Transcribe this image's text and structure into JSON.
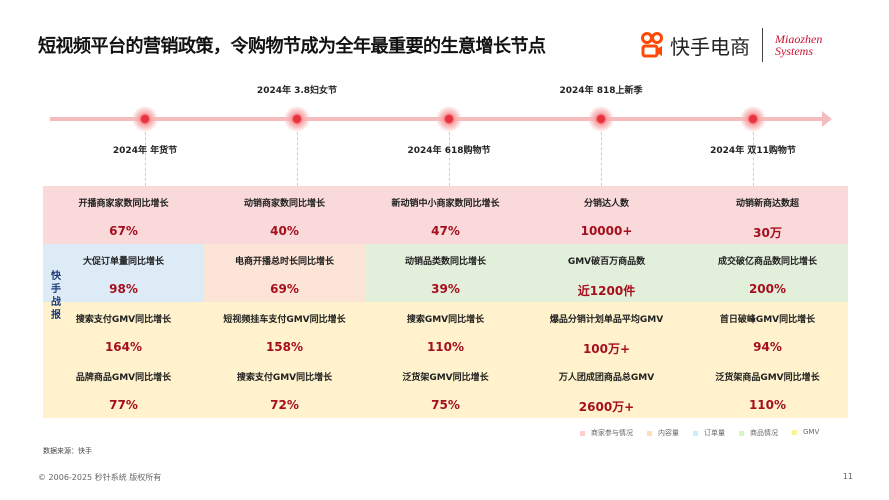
{
  "title": "短视频平台的营销政策，令购物节成为全年最重要的生意增长节点",
  "logo": {
    "kuaishou": "快手电商",
    "miaozhen_line1": "Miaozhen",
    "miaozhen_line2": "Systems"
  },
  "timeline": [
    {
      "label": "2024年 年货节",
      "position": "below"
    },
    {
      "label": "2024年 3.8妇女节",
      "position": "above"
    },
    {
      "label": "2024年 618购物节",
      "position": "below"
    },
    {
      "label": "2024年 818上新季",
      "position": "above"
    },
    {
      "label": "2024年 双11购物节",
      "position": "below"
    }
  ],
  "side_label": "快手战报",
  "colors": {
    "merchant": "#f9d9d9",
    "content": "#fce4d6",
    "order": "#ddebf7",
    "product": "#e2efda",
    "gmv": "#fff2cc",
    "value": "#a50f1e"
  },
  "rows": [
    [
      {
        "label": "开播商家家数同比增长",
        "value": "67%",
        "cat": "merchant"
      },
      {
        "label": "动销商家数同比增长",
        "value": "40%",
        "cat": "merchant"
      },
      {
        "label": "新动销中小商家数同比增长",
        "value": "47%",
        "cat": "merchant"
      },
      {
        "label": "分销达人数",
        "value": "10000+",
        "cat": "merchant"
      },
      {
        "label": "动销新商达数超",
        "value": "30万",
        "cat": "merchant"
      }
    ],
    [
      {
        "label": "大促订单量同比增长",
        "value": "98%",
        "cat": "order"
      },
      {
        "label": "电商开播总时长同比增长",
        "value": "69%",
        "cat": "content"
      },
      {
        "label": "动销品类数同比增长",
        "value": "39%",
        "cat": "product"
      },
      {
        "label": "GMV破百万商品数",
        "value": "近1200件",
        "cat": "product"
      },
      {
        "label": "成交破亿商品数同比增长",
        "value": "200%",
        "cat": "product"
      }
    ],
    [
      {
        "label": "搜索支付GMV同比增长",
        "value": "164%",
        "cat": "gmv"
      },
      {
        "label": "短视频挂车支付GMV同比增长",
        "value": "158%",
        "cat": "gmv"
      },
      {
        "label": "搜索GMV同比增长",
        "value": "110%",
        "cat": "gmv"
      },
      {
        "label": "爆品分销计划单品平均GMV",
        "value": "100万+",
        "cat": "gmv"
      },
      {
        "label": "首日破峰GMV同比增长",
        "value": "94%",
        "cat": "gmv"
      }
    ],
    [
      {
        "label": "品牌商品GMV同比增长",
        "value": "77%",
        "cat": "gmv"
      },
      {
        "label": "搜索支付GMV同比增长",
        "value": "72%",
        "cat": "gmv"
      },
      {
        "label": "泛货架GMV同比增长",
        "value": "75%",
        "cat": "gmv"
      },
      {
        "label": "万人团成团商品总GMV",
        "value": "2600万+",
        "cat": "gmv"
      },
      {
        "label": "泛货架商品GMV同比增长",
        "value": "110%",
        "cat": "gmv"
      }
    ]
  ],
  "legend": [
    {
      "label": "商家参与情况",
      "cat": "merchant"
    },
    {
      "label": "内容量",
      "cat": "content"
    },
    {
      "label": "订单量",
      "cat": "order"
    },
    {
      "label": "商品情况",
      "cat": "product"
    },
    {
      "label": "GMV",
      "cat": "gmv"
    }
  ],
  "source": "数据来源：快手",
  "footer": "© 2006-2025 秒针系统 版权所有",
  "page_number": "11"
}
